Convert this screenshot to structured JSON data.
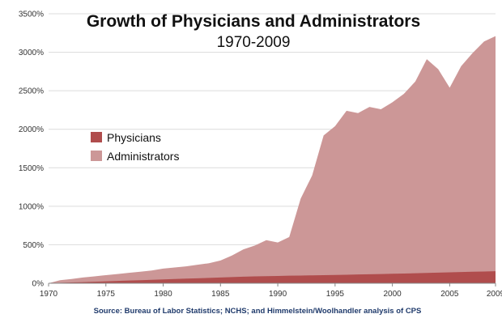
{
  "chart_data": {
    "type": "area",
    "title": "Growth of Physicians and Administrators",
    "subtitle": "1970-2009",
    "source": "Source: Bureau of Labor Statistics; NCHS; and Himmelstein/Woolhandler analysis of CPS",
    "xlabel": "",
    "ylabel": "",
    "xlim": [
      1970,
      2009
    ],
    "ylim": [
      0,
      3500
    ],
    "x_ticks": [
      1970,
      1975,
      1980,
      1985,
      1990,
      1995,
      2000,
      2005,
      2009
    ],
    "y_ticks": [
      {
        "value": 0,
        "label": "0%"
      },
      {
        "value": 500,
        "label": "500%"
      },
      {
        "value": 1000,
        "label": "1000%"
      },
      {
        "value": 1500,
        "label": "1500%"
      },
      {
        "value": 2000,
        "label": "2000%"
      },
      {
        "value": 2500,
        "label": "2500%"
      },
      {
        "value": 3000,
        "label": "3000%"
      },
      {
        "value": 3500,
        "label": "3500%"
      }
    ],
    "grid": true,
    "legend_position": "middle-left",
    "x": [
      1970,
      1971,
      1972,
      1973,
      1974,
      1975,
      1976,
      1977,
      1978,
      1979,
      1980,
      1981,
      1982,
      1983,
      1984,
      1985,
      1986,
      1987,
      1988,
      1989,
      1990,
      1991,
      1992,
      1993,
      1994,
      1995,
      1996,
      1997,
      1998,
      1999,
      2000,
      2001,
      2002,
      2003,
      2004,
      2005,
      2006,
      2007,
      2008,
      2009
    ],
    "series": [
      {
        "name": "Administrators",
        "color": "#cc9797",
        "values": [
          0,
          40,
          55,
          75,
          90,
          105,
          120,
          135,
          150,
          165,
          190,
          205,
          220,
          240,
          260,
          295,
          360,
          440,
          490,
          560,
          530,
          600,
          1100,
          1400,
          1920,
          2040,
          2240,
          2210,
          2290,
          2260,
          2350,
          2460,
          2620,
          2910,
          2780,
          2540,
          2820,
          2990,
          3140,
          3210
        ]
      },
      {
        "name": "Physicians",
        "color": "#b04d4d",
        "values": [
          0,
          5,
          10,
          15,
          20,
          25,
          30,
          35,
          40,
          45,
          50,
          55,
          60,
          65,
          70,
          75,
          80,
          85,
          90,
          92,
          95,
          98,
          100,
          103,
          105,
          108,
          111,
          114,
          117,
          120,
          123,
          126,
          130,
          134,
          138,
          142,
          146,
          150,
          153,
          156
        ]
      }
    ]
  }
}
